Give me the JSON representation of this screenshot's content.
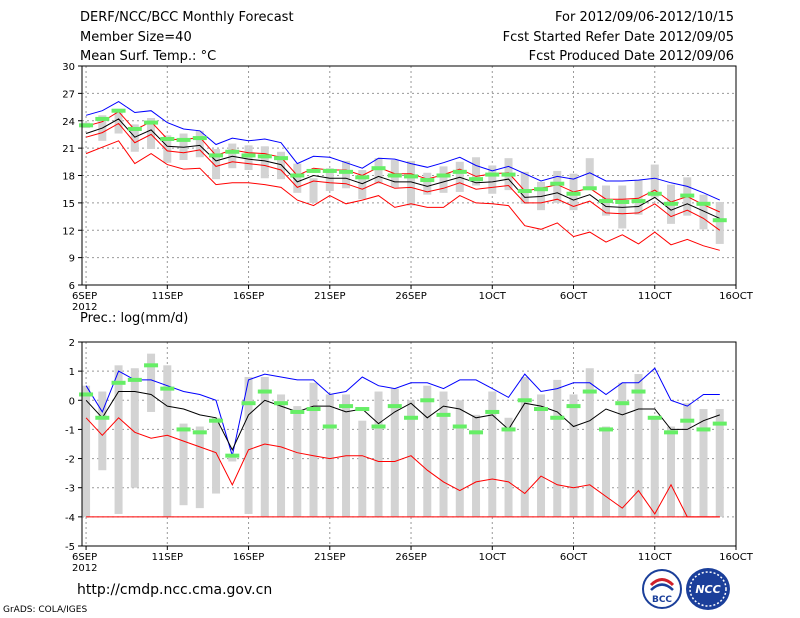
{
  "header": {
    "title": "DERF/NCC/BCC Monthly Forecast",
    "member_size": "Member Size=40",
    "variable": "Mean Surf. Temp.: °C",
    "period": "For 2012/09/06-2012/10/15",
    "started": "Fcst Started Refer Date 2012/09/05",
    "produced": "Fcst Produced Date 2012/09/06"
  },
  "footer": {
    "url": "http://cmdp.ncc.cma.gov.cn",
    "credit": "GrADS: COLA/IGES",
    "logo_left": "BCC",
    "logo_right": "NCC"
  },
  "colors": {
    "box": "#d3d3d3",
    "upper": "#0000ff",
    "lower": "#ff0000",
    "median_line": "#000000",
    "ensemble_mean": "#66ee66",
    "grid": "#999999"
  },
  "chart_data": [
    {
      "type": "line",
      "title": "Mean Surf. Temp.: °C",
      "x": [
        1,
        2,
        3,
        4,
        5,
        6,
        7,
        8,
        9,
        10,
        11,
        12,
        13,
        14,
        15,
        16,
        17,
        18,
        19,
        20,
        21,
        22,
        23,
        24,
        25,
        26,
        27,
        28,
        29,
        30,
        31,
        32,
        33,
        34,
        35,
        36,
        37,
        38,
        39,
        40
      ],
      "x_ticks": [
        {
          "x": 1,
          "label": "6SEP",
          "sub": "2012"
        },
        {
          "x": 6,
          "label": "11SEP"
        },
        {
          "x": 11,
          "label": "16SEP"
        },
        {
          "x": 16,
          "label": "21SEP"
        },
        {
          "x": 21,
          "label": "26SEP"
        },
        {
          "x": 26,
          "label": "1OCT"
        },
        {
          "x": 31,
          "label": "6OCT"
        },
        {
          "x": 36,
          "label": "11OCT"
        },
        {
          "x": 41,
          "label": "16OCT"
        }
      ],
      "xlim": [
        0.75,
        41
      ],
      "ylim": [
        6,
        30
      ],
      "y_ticks": [
        6,
        9,
        12,
        15,
        18,
        21,
        24,
        27,
        30
      ],
      "grid": true,
      "series": [
        {
          "name": "box_top",
          "values": [
            23.8,
            24.6,
            25.3,
            23.6,
            24.3,
            22.4,
            22.6,
            22.9,
            20.9,
            21.5,
            21.3,
            21.2,
            20.6,
            19.3,
            17.7,
            18.8,
            19.6,
            18.6,
            19.9,
            19.7,
            19.6,
            18.3,
            19.0,
            19.5,
            20.0,
            19.1,
            19.9,
            18.4,
            17.3,
            18.5,
            18.2,
            19.9,
            16.9,
            16.9,
            17.5,
            19.2,
            17.0,
            17.8,
            15.9,
            15.1
          ]
        },
        {
          "name": "box_bottom",
          "values": [
            23.2,
            21.8,
            22.6,
            20.6,
            20.9,
            19.4,
            19.7,
            20.0,
            17.6,
            18.8,
            18.6,
            17.7,
            17.6,
            16.1,
            15.0,
            16.3,
            16.6,
            15.4,
            17.1,
            16.7,
            14.7,
            15.9,
            16.1,
            16.2,
            16.9,
            16.0,
            16.4,
            14.9,
            14.2,
            15.0,
            14.2,
            16.7,
            13.6,
            12.2,
            13.7,
            15.6,
            12.7,
            13.6,
            12.1,
            10.5
          ]
        },
        {
          "name": "upper",
          "values": [
            24.6,
            25.1,
            26.1,
            24.9,
            25.1,
            23.8,
            23.1,
            22.9,
            21.4,
            22.1,
            21.8,
            22.0,
            21.6,
            19.3,
            20.1,
            20.0,
            19.4,
            18.8,
            19.9,
            19.8,
            19.3,
            18.9,
            19.4,
            20.0,
            19.1,
            18.5,
            19.0,
            18.2,
            17.4,
            17.9,
            17.6,
            18.3,
            17.4,
            17.4,
            17.5,
            17.7,
            17.2,
            16.8,
            16.1,
            15.3
          ]
        },
        {
          "name": "lower",
          "values": [
            20.4,
            21.1,
            21.8,
            19.3,
            20.4,
            19.2,
            18.7,
            18.8,
            17.0,
            17.2,
            17.2,
            17.0,
            16.7,
            15.3,
            14.7,
            15.8,
            14.9,
            15.3,
            15.8,
            14.5,
            14.9,
            14.5,
            14.5,
            15.8,
            15.0,
            14.9,
            14.7,
            12.5,
            12.1,
            12.8,
            11.3,
            11.8,
            10.7,
            11.5,
            10.5,
            11.8,
            10.4,
            11.0,
            10.3,
            9.8
          ]
        },
        {
          "name": "median",
          "values": [
            22.6,
            23.2,
            24.2,
            22.2,
            23.0,
            21.2,
            21.1,
            21.3,
            19.6,
            20.1,
            19.8,
            19.6,
            19.2,
            17.3,
            18.0,
            17.7,
            17.7,
            17.1,
            17.9,
            17.3,
            17.3,
            16.8,
            17.3,
            17.8,
            17.2,
            17.3,
            17.6,
            15.6,
            15.7,
            16.1,
            15.3,
            15.9,
            14.6,
            14.5,
            14.6,
            15.6,
            14.2,
            14.9,
            14.1,
            13.3
          ]
        },
        {
          "name": "upper_red",
          "values": [
            23.4,
            23.9,
            25.0,
            23.0,
            23.9,
            22.0,
            21.9,
            22.2,
            20.2,
            20.8,
            20.5,
            20.4,
            20.0,
            18.0,
            18.8,
            18.6,
            18.6,
            18.0,
            18.9,
            18.2,
            18.2,
            17.6,
            18.1,
            18.7,
            17.9,
            18.2,
            18.3,
            16.3,
            16.6,
            17.0,
            16.2,
            16.6,
            15.4,
            15.4,
            15.5,
            16.4,
            15.1,
            15.7,
            14.8,
            14.0
          ]
        },
        {
          "name": "lower_red",
          "values": [
            22.2,
            22.7,
            23.7,
            21.6,
            22.5,
            20.7,
            20.5,
            20.8,
            19.0,
            19.5,
            19.3,
            19.1,
            18.6,
            16.7,
            17.4,
            17.2,
            17.1,
            16.5,
            17.3,
            16.6,
            16.7,
            16.2,
            16.6,
            17.2,
            16.5,
            16.7,
            16.9,
            15.0,
            15.0,
            15.4,
            14.6,
            15.2,
            13.9,
            13.8,
            13.9,
            14.9,
            13.5,
            14.2,
            13.3,
            12.0
          ]
        },
        {
          "name": "ensemble_mean",
          "values": [
            23.5,
            24.2,
            25.1,
            23.1,
            23.8,
            22.0,
            21.9,
            22.1,
            20.2,
            20.6,
            20.2,
            20.1,
            19.9,
            18.0,
            18.5,
            18.5,
            18.4,
            17.8,
            18.8,
            18.0,
            17.9,
            17.5,
            18.0,
            18.4,
            17.6,
            18.1,
            18.1,
            16.3,
            16.5,
            17.1,
            16.0,
            16.6,
            15.2,
            15.1,
            15.2,
            16.0,
            14.9,
            15.8,
            14.9,
            13.1
          ]
        }
      ]
    },
    {
      "type": "line",
      "title": "Prec.: log(mm/d)",
      "x": [
        1,
        2,
        3,
        4,
        5,
        6,
        7,
        8,
        9,
        10,
        11,
        12,
        13,
        14,
        15,
        16,
        17,
        18,
        19,
        20,
        21,
        22,
        23,
        24,
        25,
        26,
        27,
        28,
        29,
        30,
        31,
        32,
        33,
        34,
        35,
        36,
        37,
        38,
        39,
        40
      ],
      "x_ticks": [
        {
          "x": 1,
          "label": "6SEP",
          "sub": "2012"
        },
        {
          "x": 6,
          "label": "11SEP"
        },
        {
          "x": 11,
          "label": "16SEP"
        },
        {
          "x": 16,
          "label": "21SEP"
        },
        {
          "x": 21,
          "label": "26SEP"
        },
        {
          "x": 26,
          "label": "1OCT"
        },
        {
          "x": 31,
          "label": "6OCT"
        },
        {
          "x": 36,
          "label": "11OCT"
        },
        {
          "x": 41,
          "label": "16OCT"
        }
      ],
      "xlim": [
        0.75,
        41
      ],
      "ylim": [
        -5,
        2
      ],
      "y_ticks": [
        -5,
        -4,
        -3,
        -2,
        -1,
        0,
        1,
        2
      ],
      "grid": true,
      "series": [
        {
          "name": "box_top",
          "values": [
            0.5,
            0.3,
            1.2,
            1.1,
            1.6,
            1.2,
            -0.8,
            -0.9,
            -0.6,
            -1.9,
            0.8,
            0.8,
            0.2,
            -0.2,
            0.6,
            0.2,
            0.2,
            -0.7,
            0.3,
            0.4,
            0.0,
            0.5,
            0.3,
            0.0,
            -0.5,
            0.3,
            -0.6,
            0.8,
            0.2,
            0.7,
            0.2,
            1.1,
            -0.9,
            0.6,
            0.9,
            -0.6,
            -0.9,
            -0.1,
            -0.3,
            -0.3
          ]
        },
        {
          "name": "box_bottom",
          "values": [
            -4.0,
            -2.4,
            -3.9,
            -3.0,
            -0.4,
            -4.0,
            -3.6,
            -3.7,
            -3.2,
            -2.1,
            -3.9,
            -4.0,
            -4.0,
            -4.0,
            -4.0,
            -4.0,
            -4.0,
            -4.0,
            -4.0,
            -4.0,
            -4.0,
            -4.0,
            -4.0,
            -4.0,
            -4.0,
            -4.0,
            -4.0,
            -4.0,
            -4.0,
            -4.0,
            -4.0,
            -4.0,
            -4.0,
            -4.0,
            -4.0,
            -4.0,
            -4.0,
            -4.0,
            -4.0,
            -4.0
          ]
        },
        {
          "name": "upper",
          "values": [
            0.5,
            -0.4,
            1.0,
            0.7,
            0.7,
            0.5,
            0.3,
            0.2,
            0.0,
            -1.9,
            0.7,
            0.9,
            0.8,
            0.7,
            0.7,
            0.2,
            0.3,
            0.8,
            0.5,
            0.4,
            0.6,
            0.6,
            0.4,
            0.7,
            0.7,
            0.4,
            0.1,
            0.9,
            0.3,
            0.4,
            0.6,
            0.6,
            0.2,
            0.6,
            0.6,
            1.1,
            0.0,
            -0.2,
            0.2,
            0.2
          ]
        },
        {
          "name": "median",
          "values": [
            0.0,
            -0.6,
            0.3,
            0.3,
            0.2,
            -0.2,
            -0.3,
            -0.5,
            -0.6,
            -1.7,
            -0.5,
            0.0,
            -0.2,
            -0.4,
            -0.2,
            -0.2,
            -0.4,
            -0.3,
            -0.8,
            -0.4,
            -0.1,
            -0.6,
            -0.2,
            -0.3,
            -0.6,
            -0.5,
            -1.0,
            -0.1,
            -0.2,
            -0.4,
            -0.9,
            -0.7,
            -0.3,
            -0.5,
            -0.3,
            -0.3,
            -1.0,
            -1.0,
            -0.7,
            -0.5
          ]
        },
        {
          "name": "lower",
          "values": [
            -0.6,
            -1.2,
            -0.6,
            -1.1,
            -1.3,
            -1.2,
            -1.4,
            -1.6,
            -1.8,
            -2.9,
            -1.7,
            -1.5,
            -1.6,
            -1.8,
            -1.9,
            -2.0,
            -1.9,
            -1.9,
            -2.1,
            -2.1,
            -1.9,
            -2.4,
            -2.8,
            -3.1,
            -2.8,
            -2.7,
            -2.8,
            -3.2,
            -2.6,
            -2.9,
            -3.0,
            -2.9,
            -3.3,
            -3.7,
            -3.1,
            -3.9,
            -2.9,
            -4.0,
            -4.0,
            -4.0
          ]
        },
        {
          "name": "floor",
          "values": [
            -4.0,
            -4.0,
            -4.0,
            -4.0,
            -4.0,
            -4.0,
            -4.0,
            -4.0,
            -4.0,
            -4.0,
            -4.0,
            -4.0,
            -4.0,
            -4.0,
            -4.0,
            -4.0,
            -4.0,
            -4.0,
            -4.0,
            -4.0,
            -4.0,
            -4.0,
            -4.0,
            -4.0,
            -4.0,
            -4.0,
            -4.0,
            -4.0,
            -4.0,
            -4.0,
            -4.0,
            -4.0,
            -4.0,
            -4.0,
            -4.0,
            -4.0,
            -4.0,
            -4.0,
            -4.0,
            -4.0
          ]
        },
        {
          "name": "ensemble_mean",
          "values": [
            0.2,
            -0.6,
            0.6,
            0.7,
            1.2,
            0.4,
            -1.0,
            -1.1,
            -0.7,
            -1.9,
            -0.1,
            0.3,
            -0.1,
            -0.4,
            -0.3,
            -0.9,
            -0.2,
            -0.3,
            -0.9,
            -0.2,
            -0.6,
            0.0,
            -0.5,
            -0.9,
            -1.1,
            -0.4,
            -1.0,
            0.0,
            -0.3,
            -0.6,
            -0.2,
            0.3,
            -1.0,
            -0.1,
            0.3,
            -0.6,
            -1.1,
            -0.7,
            -1.0,
            -0.8
          ]
        }
      ]
    }
  ]
}
